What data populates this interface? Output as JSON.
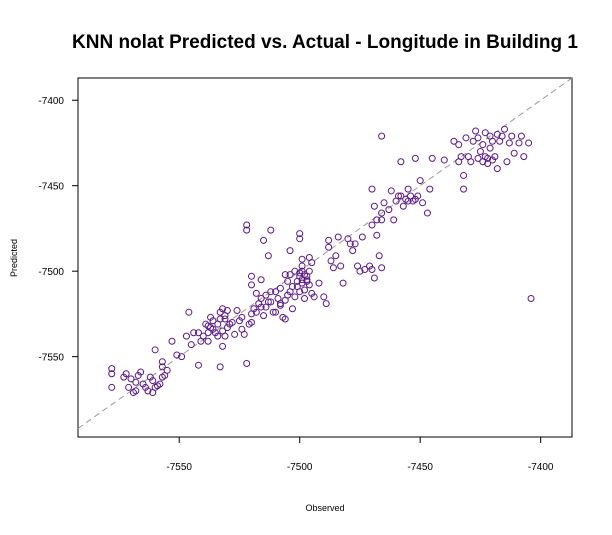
{
  "colors": {
    "point": "#5b1a86",
    "reference_line": "#999999",
    "frame": "#000000"
  },
  "chart_data": {
    "type": "scatter",
    "title": "KNN nolat Predicted vs. Actual - Longitude in Building 1",
    "xlabel": "Observed",
    "ylabel": "Predicted",
    "xlim": [
      -7592,
      -7387
    ],
    "ylim": [
      -7597,
      -7387
    ],
    "x_ticks": [
      -7550,
      -7500,
      -7450,
      -7400
    ],
    "y_ticks": [
      -7400,
      -7450,
      -7500,
      -7550
    ],
    "x_tick_labels": [
      "-7550",
      "-7500",
      "-7450",
      "-7400"
    ],
    "y_tick_labels": [
      "-7400",
      "-7450",
      "-7500",
      "-7550"
    ],
    "reference_line": "y = x",
    "marker": "open-circle",
    "points": [
      [
        -7578,
        -7557
      ],
      [
        -7578,
        -7560
      ],
      [
        -7578,
        -7568
      ],
      [
        -7573,
        -7562
      ],
      [
        -7572,
        -7560
      ],
      [
        -7571,
        -7568
      ],
      [
        -7570,
        -7563
      ],
      [
        -7569,
        -7571
      ],
      [
        -7568,
        -7570
      ],
      [
        -7568,
        -7565
      ],
      [
        -7567,
        -7561
      ],
      [
        -7566,
        -7559
      ],
      [
        -7565,
        -7566
      ],
      [
        -7564,
        -7568
      ],
      [
        -7563,
        -7570
      ],
      [
        -7562,
        -7562
      ],
      [
        -7561,
        -7571
      ],
      [
        -7561,
        -7564
      ],
      [
        -7560,
        -7568
      ],
      [
        -7560,
        -7546
      ],
      [
        -7559,
        -7567
      ],
      [
        -7558,
        -7566
      ],
      [
        -7557,
        -7562
      ],
      [
        -7557,
        -7556
      ],
      [
        -7557,
        -7553
      ],
      [
        -7556,
        -7561
      ],
      [
        -7555,
        -7558
      ],
      [
        -7553,
        -7541
      ],
      [
        -7551,
        -7549
      ],
      [
        -7549,
        -7550
      ],
      [
        -7547,
        -7538
      ],
      [
        -7546,
        -7524
      ],
      [
        -7545,
        -7543
      ],
      [
        -7544,
        -7536
      ],
      [
        -7542,
        -7536
      ],
      [
        -7542,
        -7555
      ],
      [
        -7541,
        -7541
      ],
      [
        -7540,
        -7538
      ],
      [
        -7539,
        -7531
      ],
      [
        -7538,
        -7541
      ],
      [
        -7538,
        -7532
      ],
      [
        -7538,
        -7536
      ],
      [
        -7537,
        -7533
      ],
      [
        -7537,
        -7527
      ],
      [
        -7536,
        -7529
      ],
      [
        -7536,
        -7534
      ],
      [
        -7535,
        -7536
      ],
      [
        -7534,
        -7538
      ],
      [
        -7534,
        -7531
      ],
      [
        -7533,
        -7524
      ],
      [
        -7533,
        -7556
      ],
      [
        -7533,
        -7528
      ],
      [
        -7532,
        -7522
      ],
      [
        -7532,
        -7544
      ],
      [
        -7532,
        -7535
      ],
      [
        -7531,
        -7528
      ],
      [
        -7531,
        -7538
      ],
      [
        -7531,
        -7526
      ],
      [
        -7530,
        -7533
      ],
      [
        -7530,
        -7523
      ],
      [
        -7529,
        -7531
      ],
      [
        -7528,
        -7530
      ],
      [
        -7527,
        -7537
      ],
      [
        -7526,
        -7523
      ],
      [
        -7525,
        -7529
      ],
      [
        -7524,
        -7527
      ],
      [
        -7524,
        -7534
      ],
      [
        -7523,
        -7537
      ],
      [
        -7522,
        -7554
      ],
      [
        -7521,
        -7531
      ],
      [
        -7520,
        -7525
      ],
      [
        -7520,
        -7530
      ],
      [
        -7519,
        -7522
      ],
      [
        -7518,
        -7524
      ],
      [
        -7517,
        -7519
      ],
      [
        -7516,
        -7516
      ],
      [
        -7516,
        -7521
      ],
      [
        -7515,
        -7526
      ],
      [
        -7514,
        -7514
      ],
      [
        -7514,
        -7521
      ],
      [
        -7513,
        -7518
      ],
      [
        -7512,
        -7512
      ],
      [
        -7512,
        -7518
      ],
      [
        -7511,
        -7524
      ],
      [
        -7510,
        -7524
      ],
      [
        -7510,
        -7512
      ],
      [
        -7509,
        -7516
      ],
      [
        -7508,
        -7520
      ],
      [
        -7508,
        -7510
      ],
      [
        -7507,
        -7527
      ],
      [
        -7506,
        -7528
      ],
      [
        -7506,
        -7517
      ],
      [
        -7505,
        -7514
      ],
      [
        -7505,
        -7506
      ],
      [
        -7504,
        -7512
      ],
      [
        -7504,
        -7502
      ],
      [
        -7503,
        -7509
      ],
      [
        -7503,
        -7522
      ],
      [
        -7502,
        -7515
      ],
      [
        -7502,
        -7500
      ],
      [
        -7501,
        -7506
      ],
      [
        -7501,
        -7509
      ],
      [
        -7500,
        -7503
      ],
      [
        -7500,
        -7501
      ],
      [
        -7500,
        -7512
      ],
      [
        -7499,
        -7505
      ],
      [
        -7499,
        -7500
      ],
      [
        -7499,
        -7507
      ],
      [
        -7498,
        -7502
      ],
      [
        -7498,
        -7511
      ],
      [
        -7497,
        -7505
      ],
      [
        -7497,
        -7503
      ],
      [
        -7496,
        -7508
      ],
      [
        -7496,
        -7500
      ],
      [
        -7495,
        -7495
      ],
      [
        -7495,
        -7513
      ],
      [
        -7522,
        -7473
      ],
      [
        -7522,
        -7476
      ],
      [
        -7520,
        -7503
      ],
      [
        -7520,
        -7508
      ],
      [
        -7518,
        -7513
      ],
      [
        -7516,
        -7505
      ],
      [
        -7515,
        -7482
      ],
      [
        -7513,
        -7491
      ],
      [
        -7512,
        -7476
      ],
      [
        -7508,
        -7519
      ],
      [
        -7506,
        -7502
      ],
      [
        -7504,
        -7488
      ],
      [
        -7500,
        -7478
      ],
      [
        -7500,
        -7481
      ],
      [
        -7499,
        -7497
      ],
      [
        -7499,
        -7493
      ],
      [
        -7498,
        -7516
      ],
      [
        -7497,
        -7506
      ],
      [
        -7496,
        -7492
      ],
      [
        -7494,
        -7515
      ],
      [
        -7492,
        -7507
      ],
      [
        -7490,
        -7515
      ],
      [
        -7489,
        -7519
      ],
      [
        -7488,
        -7482
      ],
      [
        -7488,
        -7486
      ],
      [
        -7487,
        -7494
      ],
      [
        -7486,
        -7498
      ],
      [
        -7485,
        -7491
      ],
      [
        -7484,
        -7480
      ],
      [
        -7483,
        -7497
      ],
      [
        -7482,
        -7507
      ],
      [
        -7480,
        -7481
      ],
      [
        -7479,
        -7484
      ],
      [
        -7478,
        -7488
      ],
      [
        -7477,
        -7484
      ],
      [
        -7476,
        -7497
      ],
      [
        -7475,
        -7500
      ],
      [
        -7474,
        -7480
      ],
      [
        -7473,
        -7499
      ],
      [
        -7471,
        -7497
      ],
      [
        -7470,
        -7499
      ],
      [
        -7470,
        -7473
      ],
      [
        -7469,
        -7504
      ],
      [
        -7468,
        -7479
      ],
      [
        -7467,
        -7491
      ],
      [
        -7466,
        -7498
      ],
      [
        -7466,
        -7470
      ],
      [
        -7470,
        -7452
      ],
      [
        -7469,
        -7462
      ],
      [
        -7468,
        -7470
      ],
      [
        -7466,
        -7466
      ],
      [
        -7465,
        -7460
      ],
      [
        -7463,
        -7464
      ],
      [
        -7462,
        -7453
      ],
      [
        -7461,
        -7470
      ],
      [
        -7460,
        -7459
      ],
      [
        -7459,
        -7456
      ],
      [
        -7458,
        -7456
      ],
      [
        -7458,
        -7436
      ],
      [
        -7457,
        -7462
      ],
      [
        -7456,
        -7458
      ],
      [
        -7455,
        -7452
      ],
      [
        -7455,
        -7459
      ],
      [
        -7454,
        -7456
      ],
      [
        -7453,
        -7459
      ],
      [
        -7452,
        -7458
      ],
      [
        -7452,
        -7434
      ],
      [
        -7451,
        -7456
      ],
      [
        -7450,
        -7447
      ],
      [
        -7449,
        -7460
      ],
      [
        -7447,
        -7466
      ],
      [
        -7446,
        -7452
      ],
      [
        -7445,
        -7434
      ],
      [
        -7440,
        -7435
      ],
      [
        -7466,
        -7421
      ],
      [
        -7436,
        -7424
      ],
      [
        -7434,
        -7426
      ],
      [
        -7434,
        -7436
      ],
      [
        -7433,
        -7433
      ],
      [
        -7432,
        -7444
      ],
      [
        -7432,
        -7452
      ],
      [
        -7431,
        -7422
      ],
      [
        -7430,
        -7433
      ],
      [
        -7429,
        -7436
      ],
      [
        -7428,
        -7424
      ],
      [
        -7427,
        -7418
      ],
      [
        -7426,
        -7422
      ],
      [
        -7426,
        -7434
      ],
      [
        -7425,
        -7430
      ],
      [
        -7424,
        -7426
      ],
      [
        -7424,
        -7436
      ],
      [
        -7423,
        -7419
      ],
      [
        -7423,
        -7433
      ],
      [
        -7422,
        -7434
      ],
      [
        -7422,
        -7437
      ],
      [
        -7421,
        -7421
      ],
      [
        -7421,
        -7428
      ],
      [
        -7420,
        -7435
      ],
      [
        -7420,
        -7424
      ],
      [
        -7419,
        -7433
      ],
      [
        -7418,
        -7420
      ],
      [
        -7418,
        -7440
      ],
      [
        -7417,
        -7424
      ],
      [
        -7416,
        -7421
      ],
      [
        -7415,
        -7417
      ],
      [
        -7414,
        -7436
      ],
      [
        -7413,
        -7425
      ],
      [
        -7412,
        -7421
      ],
      [
        -7411,
        -7431
      ],
      [
        -7409,
        -7425
      ],
      [
        -7408,
        -7421
      ],
      [
        -7407,
        -7433
      ],
      [
        -7405,
        -7425
      ],
      [
        -7404,
        -7516
      ]
    ]
  }
}
